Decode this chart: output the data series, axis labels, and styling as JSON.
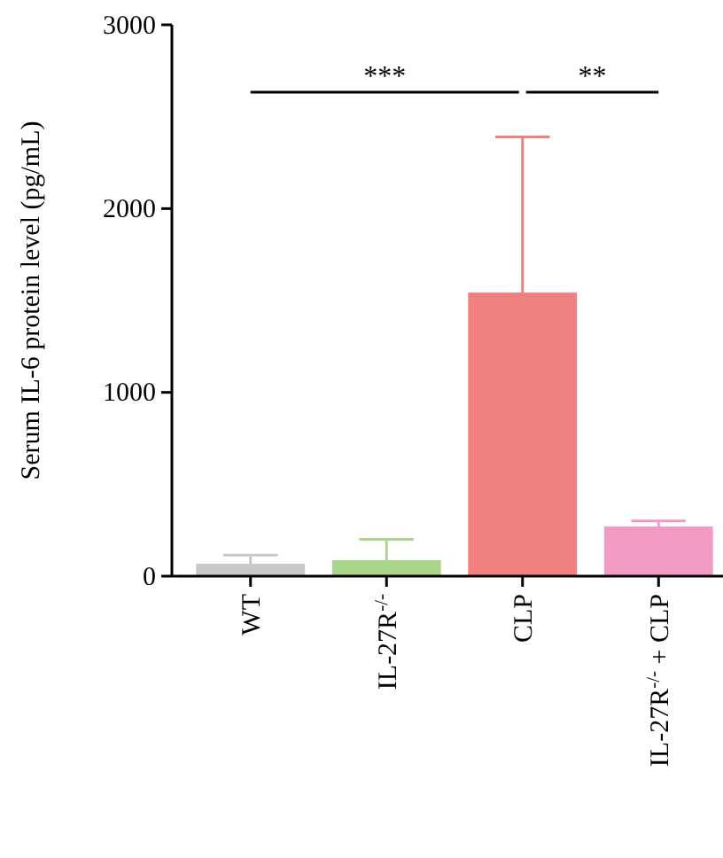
{
  "chart_data": {
    "type": "bar",
    "ylabel": "Serum IL-6 protein level (pg/mL)",
    "categories": [
      "WT",
      "IL-27R$^{-/-}$",
      "CLP",
      "IL-27R$^{-/-}$ + CLP"
    ],
    "values": [
      67,
      87,
      1543,
      270
    ],
    "colors": [
      "#c8c8c8",
      "#a8d58a",
      "#f07f80",
      "#f29ac4"
    ],
    "errors": [
      [
        67,
        115
      ],
      [
        87,
        200
      ],
      [
        1543,
        2390
      ],
      [
        270,
        300
      ]
    ],
    "ylim": [
      0,
      3000
    ],
    "yticks": [
      0,
      1000,
      2000,
      3000
    ],
    "annotations": [
      "***",
      "**"
    ]
  }
}
